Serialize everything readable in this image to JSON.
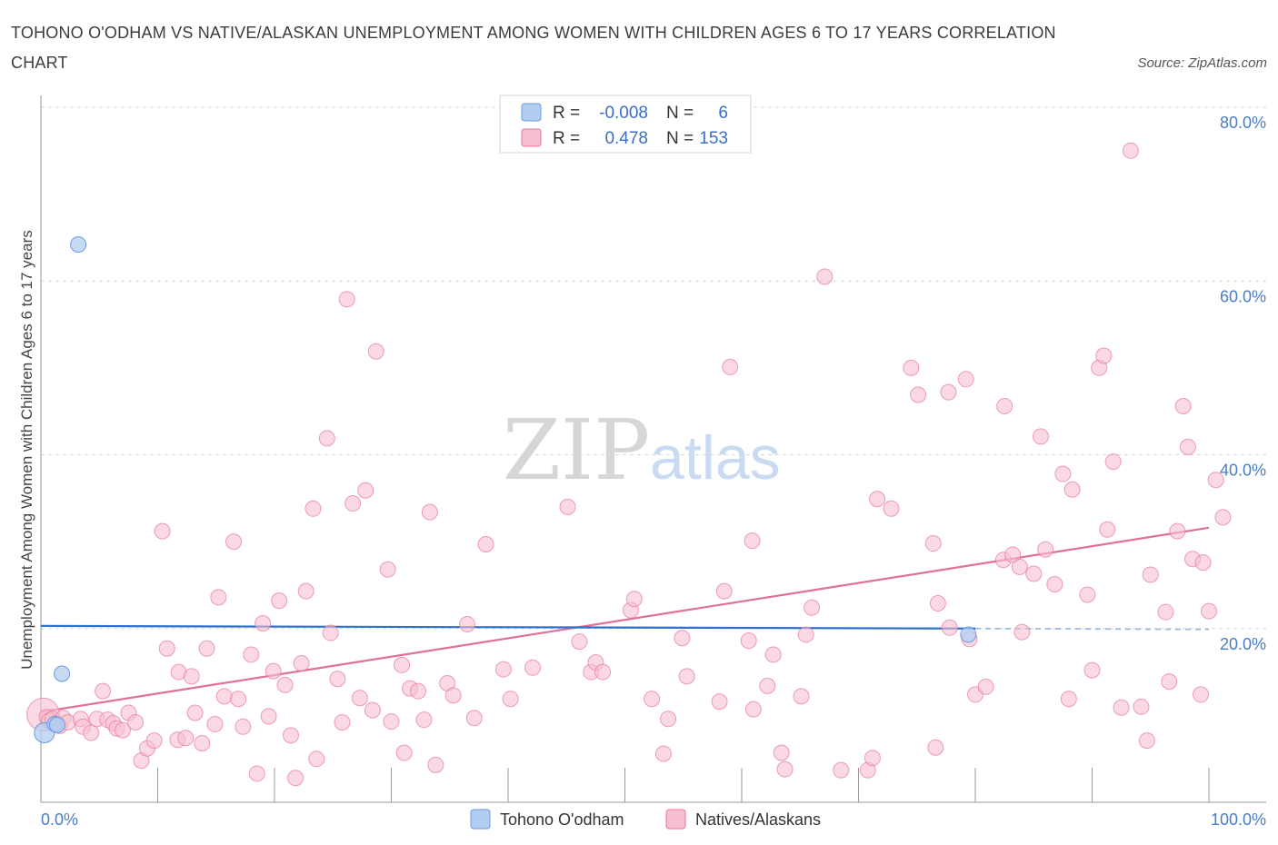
{
  "title": "TOHONO O'ODHAM VS NATIVE/ALASKAN UNEMPLOYMENT AMONG WOMEN WITH CHILDREN AGES 6 TO 17 YEARS CORRELATION CHART",
  "source": "Source: ZipAtlas.com",
  "watermark": {
    "zip": "ZIP",
    "atlas": "atlas"
  },
  "colors": {
    "blue": "#6b9be0",
    "blue_fill": "#b3cdf1",
    "pink": "#e8769c",
    "pink_fill": "#f6bfd0",
    "blue_line": "#2f6fd0",
    "pink_line": "#e0709a",
    "grid": "#d7d7d7"
  },
  "legend": {
    "rows": [
      {
        "series": "Tohono O'odham",
        "r_label": "R =",
        "r_value": "-0.008",
        "n_label": "N =",
        "n_value": "6"
      },
      {
        "series": "Natives/Alaskans",
        "r_label": "R =",
        "r_value": "0.478",
        "n_label": "N =",
        "n_value": "153"
      }
    ]
  },
  "chart_data": {
    "type": "scatter",
    "xlabel": "",
    "ylabel": "Unemployment Among Women with Children Ages 6 to 17 years",
    "x_tick_labels": [
      "0.0%",
      "100.0%"
    ],
    "y_tick_labels": [
      "20.0%",
      "40.0%",
      "60.0%",
      "80.0%"
    ],
    "y_ticks": [
      20,
      40,
      60,
      80
    ],
    "xlim": [
      0,
      100
    ],
    "ylim": [
      0,
      80
    ],
    "series": [
      {
        "name": "Tohono O'odham",
        "color": "#6b9be0",
        "trend": {
          "x0": 0,
          "y0": 20.3,
          "x1": 80,
          "y1": 20.0,
          "x_dash_end": 100,
          "y_dash_end": 19.9
        },
        "points": [
          [
            0.3,
            8.0
          ],
          [
            1.2,
            9.0
          ],
          [
            1.4,
            8.9
          ],
          [
            3.2,
            64.2
          ],
          [
            1.8,
            14.8
          ],
          [
            79.4,
            19.3
          ]
        ]
      },
      {
        "name": "Natives/Alaskans",
        "color": "#e8769c",
        "trend": {
          "x0": 0,
          "y0": 10.4,
          "x1": 100,
          "y1": 31.6
        },
        "points": [
          [
            0.2,
            10.1
          ],
          [
            0.5,
            9.8
          ],
          [
            0.7,
            9.4
          ],
          [
            1.0,
            9.6
          ],
          [
            1.3,
            9.1
          ],
          [
            1.6,
            8.8
          ],
          [
            1.9,
            9.7
          ],
          [
            2.3,
            9.2
          ],
          [
            3.4,
            9.6
          ],
          [
            3.6,
            8.7
          ],
          [
            4.3,
            8.0
          ],
          [
            4.8,
            9.6
          ],
          [
            5.3,
            12.8
          ],
          [
            5.7,
            9.5
          ],
          [
            6.2,
            9.1
          ],
          [
            6.5,
            8.5
          ],
          [
            7.0,
            8.3
          ],
          [
            7.5,
            10.3
          ],
          [
            8.1,
            9.2
          ],
          [
            8.6,
            4.8
          ],
          [
            9.1,
            6.2
          ],
          [
            9.7,
            7.1
          ],
          [
            10.4,
            31.2
          ],
          [
            10.8,
            17.7
          ],
          [
            11.7,
            7.2
          ],
          [
            11.8,
            15.0
          ],
          [
            12.4,
            7.4
          ],
          [
            12.9,
            14.5
          ],
          [
            13.2,
            10.3
          ],
          [
            13.8,
            6.8
          ],
          [
            14.2,
            17.7
          ],
          [
            14.9,
            9.0
          ],
          [
            15.2,
            23.6
          ],
          [
            15.7,
            12.2
          ],
          [
            16.5,
            30.0
          ],
          [
            16.9,
            11.9
          ],
          [
            17.3,
            8.7
          ],
          [
            18.0,
            17.0
          ],
          [
            18.5,
            3.3
          ],
          [
            19.0,
            20.6
          ],
          [
            19.5,
            9.9
          ],
          [
            19.9,
            15.1
          ],
          [
            20.4,
            23.2
          ],
          [
            20.9,
            13.5
          ],
          [
            21.4,
            7.7
          ],
          [
            21.8,
            2.8
          ],
          [
            22.3,
            16.0
          ],
          [
            22.7,
            24.3
          ],
          [
            23.3,
            33.8
          ],
          [
            23.6,
            5.0
          ],
          [
            24.5,
            41.9
          ],
          [
            24.8,
            19.5
          ],
          [
            25.4,
            14.2
          ],
          [
            25.8,
            9.2
          ],
          [
            26.2,
            57.9
          ],
          [
            26.7,
            34.4
          ],
          [
            27.3,
            12.0
          ],
          [
            27.8,
            35.9
          ],
          [
            28.4,
            10.6
          ],
          [
            28.7,
            51.9
          ],
          [
            29.7,
            26.8
          ],
          [
            30.0,
            9.3
          ],
          [
            30.9,
            15.8
          ],
          [
            31.1,
            5.7
          ],
          [
            31.6,
            13.1
          ],
          [
            32.3,
            12.8
          ],
          [
            32.8,
            9.5
          ],
          [
            33.3,
            33.4
          ],
          [
            33.8,
            4.3
          ],
          [
            34.8,
            13.7
          ],
          [
            35.3,
            12.3
          ],
          [
            36.5,
            20.5
          ],
          [
            37.1,
            9.7
          ],
          [
            38.1,
            29.7
          ],
          [
            39.6,
            15.3
          ],
          [
            40.2,
            11.9
          ],
          [
            42.1,
            15.5
          ],
          [
            45.1,
            34.0
          ],
          [
            46.1,
            18.5
          ],
          [
            47.1,
            15.0
          ],
          [
            47.5,
            16.1
          ],
          [
            48.1,
            15.0
          ],
          [
            50.5,
            22.1
          ],
          [
            50.8,
            23.4
          ],
          [
            52.3,
            11.9
          ],
          [
            53.3,
            5.6
          ],
          [
            53.7,
            9.6
          ],
          [
            54.9,
            18.9
          ],
          [
            55.3,
            14.5
          ],
          [
            58.1,
            11.6
          ],
          [
            58.5,
            24.3
          ],
          [
            59.0,
            50.1
          ],
          [
            60.6,
            18.6
          ],
          [
            60.9,
            30.1
          ],
          [
            61.0,
            10.7
          ],
          [
            62.2,
            13.4
          ],
          [
            62.7,
            17.0
          ],
          [
            63.4,
            5.7
          ],
          [
            63.7,
            3.8
          ],
          [
            65.1,
            12.2
          ],
          [
            65.5,
            19.3
          ],
          [
            66.0,
            22.4
          ],
          [
            67.1,
            60.5
          ],
          [
            68.5,
            3.7
          ],
          [
            70.8,
            3.7
          ],
          [
            71.2,
            5.1
          ],
          [
            71.6,
            34.9
          ],
          [
            72.8,
            33.8
          ],
          [
            74.5,
            50.0
          ],
          [
            75.1,
            46.9
          ],
          [
            76.4,
            29.8
          ],
          [
            76.6,
            6.3
          ],
          [
            76.8,
            22.9
          ],
          [
            77.7,
            47.2
          ],
          [
            77.8,
            20.1
          ],
          [
            79.2,
            48.7
          ],
          [
            79.5,
            18.8
          ],
          [
            80.0,
            12.4
          ],
          [
            80.9,
            13.3
          ],
          [
            82.4,
            27.9
          ],
          [
            82.5,
            45.6
          ],
          [
            83.2,
            28.5
          ],
          [
            83.8,
            27.1
          ],
          [
            84.0,
            19.6
          ],
          [
            85.0,
            26.3
          ],
          [
            85.6,
            42.1
          ],
          [
            86.0,
            29.1
          ],
          [
            86.8,
            25.1
          ],
          [
            87.5,
            37.8
          ],
          [
            88.0,
            11.9
          ],
          [
            88.3,
            36.0
          ],
          [
            89.6,
            23.9
          ],
          [
            90.0,
            15.2
          ],
          [
            90.6,
            50.0
          ],
          [
            91.0,
            51.4
          ],
          [
            91.3,
            31.4
          ],
          [
            91.8,
            39.2
          ],
          [
            92.5,
            10.9
          ],
          [
            93.3,
            75.0
          ],
          [
            94.2,
            11.0
          ],
          [
            94.7,
            7.1
          ],
          [
            95.0,
            26.2
          ],
          [
            96.3,
            21.9
          ],
          [
            96.6,
            13.9
          ],
          [
            97.3,
            31.2
          ],
          [
            97.8,
            45.6
          ],
          [
            98.2,
            40.9
          ],
          [
            98.6,
            28.0
          ],
          [
            99.3,
            12.4
          ],
          [
            99.5,
            27.6
          ],
          [
            100.0,
            22.0
          ],
          [
            100.6,
            37.1
          ],
          [
            101.2,
            32.8
          ]
        ]
      }
    ]
  }
}
